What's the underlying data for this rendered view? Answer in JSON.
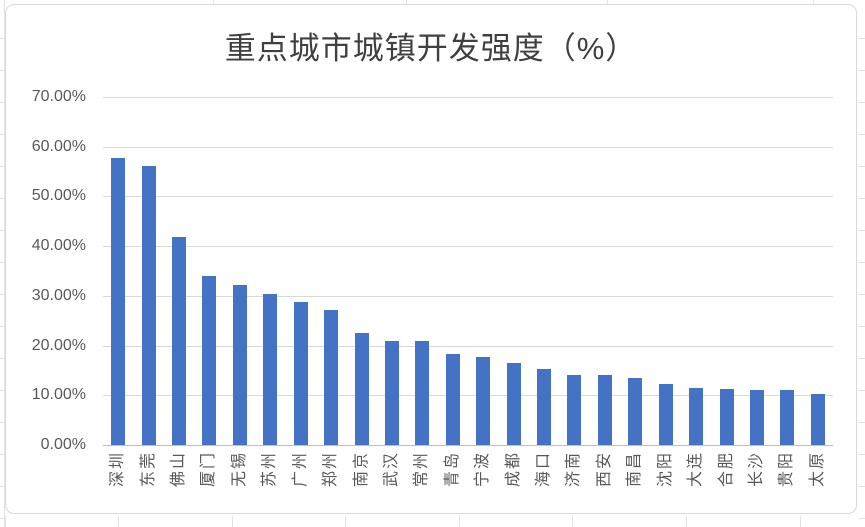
{
  "chart_data": {
    "type": "bar",
    "title": "重点城市城镇开发强度（%）",
    "categories": [
      "深圳",
      "东莞",
      "佛山",
      "厦门",
      "无锡",
      "苏州",
      "广州",
      "郑州",
      "南京",
      "武汉",
      "常州",
      "青岛",
      "宁波",
      "成都",
      "海口",
      "济南",
      "西安",
      "南昌",
      "沈阳",
      "大连",
      "合肥",
      "长沙",
      "贵阳",
      "太原"
    ],
    "values": [
      57.8,
      56.2,
      41.9,
      34.0,
      32.1,
      30.4,
      28.7,
      27.2,
      22.6,
      21.0,
      20.9,
      18.4,
      17.8,
      16.5,
      15.3,
      14.0,
      14.1,
      13.5,
      12.2,
      11.4,
      11.3,
      11.0,
      11.1,
      10.3
    ],
    "unit": "%",
    "xlabel": "",
    "ylabel": "",
    "ylim": [
      0,
      70
    ],
    "y_ticks": [
      0,
      10,
      20,
      30,
      40,
      50,
      60,
      70
    ],
    "y_tick_labels": [
      "0.00%",
      "10.00%",
      "20.00%",
      "30.00%",
      "40.00%",
      "50.00%",
      "60.00%",
      "70.00%"
    ],
    "grid": true,
    "legend": false,
    "x_label_rotation": -90
  },
  "colors": {
    "bar": "#4472c4",
    "gridline": "#d9d9d9",
    "axis_line": "#bfbfbf",
    "tick_text": "#595959",
    "title_text": "#404040",
    "chart_border": "#d9d9d9",
    "chart_bg": "#ffffff",
    "sheet_line": "#e2e2e2"
  }
}
